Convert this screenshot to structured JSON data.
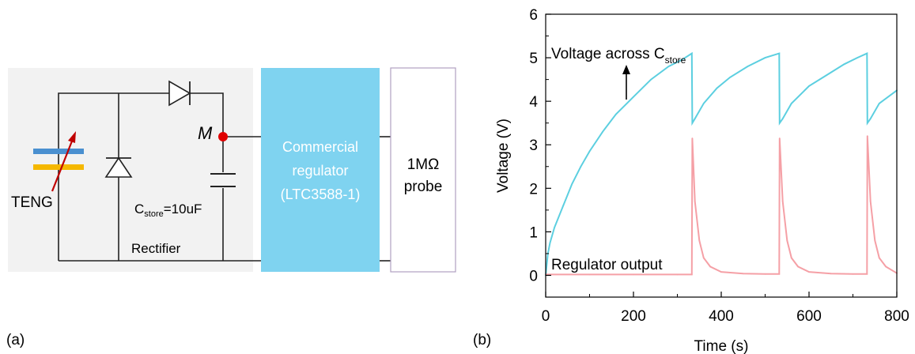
{
  "panel_a": {
    "label": "(a)",
    "teng_label": "TENG",
    "cstore_prefix": "C",
    "cstore_sub": "store",
    "cstore_value": "=10uF",
    "rectifier_label": "Rectifier",
    "node_label": "M",
    "regulator_lines": [
      "Commercial",
      "regulator",
      "(LTC3588-1)"
    ],
    "probe_lines": [
      "1MΩ",
      "probe"
    ],
    "colors": {
      "regulator_box": "#7fd3f0",
      "node_dot": "#e00000",
      "teng_blue": "#4a90d0",
      "teng_orange": "#f5b800",
      "arrow": "#c00000",
      "shade": "#f2f2f2"
    }
  },
  "panel_b": {
    "label": "(b)",
    "annotation_vc_prefix": "Voltage across C",
    "annotation_vc_sub": "store",
    "annotation_reg": "Regulator output"
  },
  "chart_data": {
    "type": "line",
    "xlabel": "Time (s)",
    "ylabel": "Voltage (V)",
    "xlim": [
      0,
      800
    ],
    "ylim": [
      -0.5,
      6
    ],
    "xticks": [
      0,
      200,
      400,
      600,
      800
    ],
    "yticks": [
      0,
      1,
      2,
      3,
      4,
      5,
      6
    ],
    "grid": false,
    "series": [
      {
        "color": "#5ccfe0",
        "x": [
          0,
          5,
          10,
          20,
          40,
          60,
          80,
          100,
          130,
          160,
          200,
          240,
          280,
          310,
          333,
          334,
          340,
          360,
          390,
          420,
          460,
          500,
          532,
          533,
          540,
          560,
          600,
          640,
          680,
          710,
          732,
          733,
          740,
          760,
          800
        ],
        "y": [
          0,
          0.5,
          0.75,
          1.1,
          1.6,
          2.1,
          2.5,
          2.85,
          3.3,
          3.7,
          4.1,
          4.5,
          4.8,
          4.95,
          5.1,
          3.5,
          3.6,
          3.95,
          4.3,
          4.55,
          4.8,
          5.0,
          5.1,
          3.5,
          3.6,
          3.95,
          4.35,
          4.6,
          4.85,
          5.0,
          5.1,
          3.5,
          3.6,
          3.95,
          4.25
        ]
      },
      {
        "color": "#f5a0a6",
        "x": [
          0,
          100,
          200,
          300,
          333,
          334,
          340,
          350,
          360,
          375,
          400,
          450,
          500,
          532,
          533,
          540,
          550,
          560,
          575,
          600,
          650,
          700,
          732,
          733,
          740,
          750,
          760,
          775,
          800
        ],
        "y": [
          0.02,
          0.02,
          0.02,
          0.02,
          0.02,
          3.15,
          1.7,
          0.8,
          0.4,
          0.2,
          0.08,
          0.04,
          0.03,
          0.03,
          3.15,
          1.7,
          0.8,
          0.4,
          0.2,
          0.08,
          0.04,
          0.03,
          0.03,
          3.2,
          1.7,
          0.8,
          0.4,
          0.2,
          0.05
        ]
      }
    ]
  }
}
